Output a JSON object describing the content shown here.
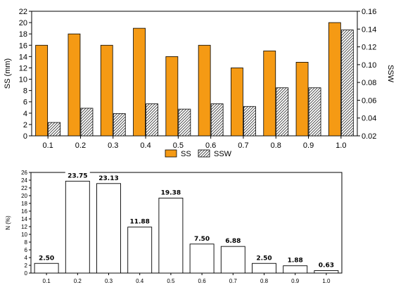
{
  "chart_data": [
    {
      "type": "bar",
      "categories": [
        "0.1",
        "0.2",
        "0.3",
        "0.4",
        "0.5",
        "0.6",
        "0.7",
        "0.8",
        "0.9",
        "1.0"
      ],
      "series": [
        {
          "name": "SS",
          "axis": "left",
          "color": "#f59a14",
          "pattern": "solid",
          "values": [
            16,
            18,
            16,
            19,
            14,
            16,
            12,
            15,
            13,
            20
          ]
        },
        {
          "name": "SSW",
          "axis": "right",
          "color": "#ffffff",
          "pattern": "diagonal-hatch",
          "values": [
            0.035,
            0.051,
            0.045,
            0.056,
            0.05,
            0.056,
            0.053,
            0.074,
            0.074,
            0.139
          ]
        }
      ],
      "ylabel": "SS (mm)",
      "ylabel_right": "SSW",
      "ylim": [
        0,
        22
      ],
      "yticks": [
        "0",
        "2",
        "4",
        "6",
        "8",
        "10",
        "12",
        "14",
        "16",
        "18",
        "20",
        "22"
      ],
      "ylim_right": [
        0.02,
        0.16
      ],
      "yticks_right": [
        "0.02",
        "0.04",
        "0.06",
        "0.08",
        "0.10",
        "0.12",
        "0.14",
        "0.16"
      ],
      "legend": [
        "SS",
        "SSW"
      ],
      "legend_position": "bottom",
      "grid": false
    },
    {
      "type": "bar",
      "categories": [
        "0.1",
        "0.2",
        "0.3",
        "0.4",
        "0.5",
        "0.6",
        "0.7",
        "0.8",
        "0.9",
        "1.0"
      ],
      "series": [
        {
          "values": [
            2.5,
            23.75,
            23.13,
            11.88,
            19.38,
            7.5,
            6.88,
            2.5,
            1.88,
            0.63
          ]
        }
      ],
      "data_labels": [
        "2.50",
        "23.75",
        "23.13",
        "11.88",
        "19.38",
        "7.50",
        "6.88",
        "2.50",
        "1.88",
        "0.63"
      ],
      "ylabel": "N (%)",
      "ylim": [
        0,
        26
      ],
      "yticks": [
        "0",
        "2",
        "4",
        "6",
        "8",
        "10",
        "12",
        "14",
        "16",
        "18",
        "20",
        "22",
        "24",
        "26"
      ],
      "grid": false
    }
  ]
}
